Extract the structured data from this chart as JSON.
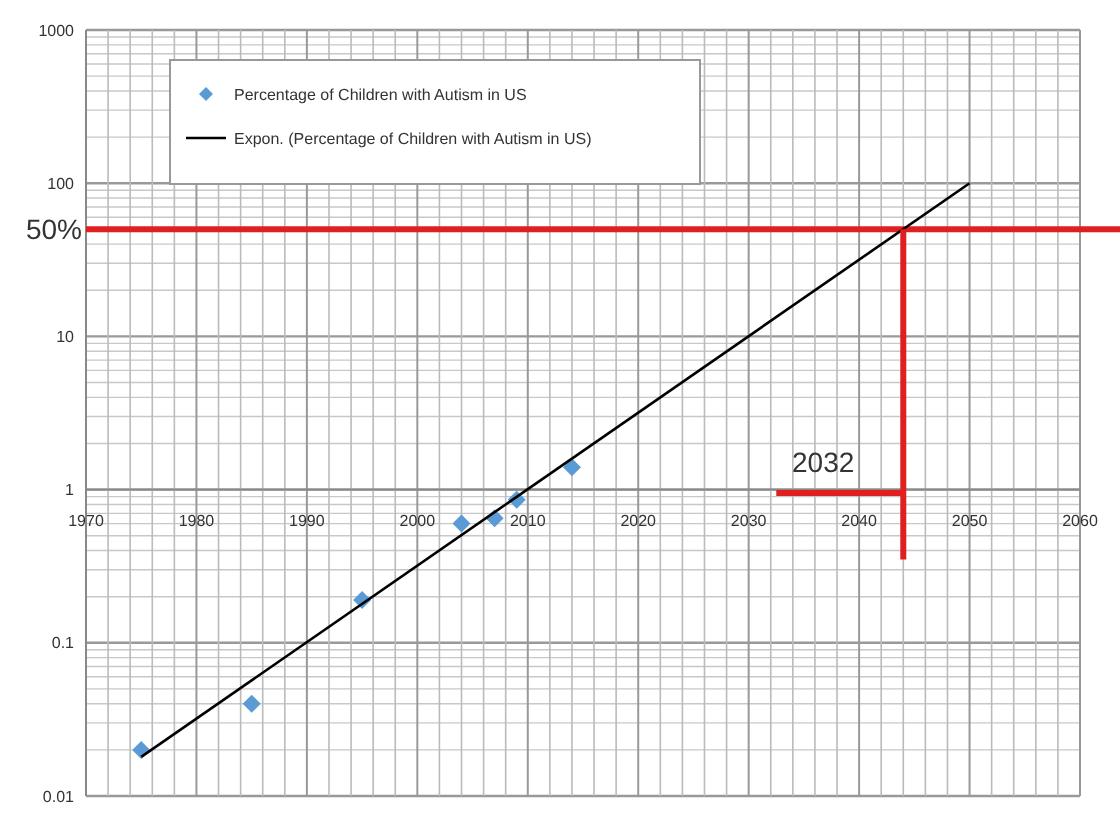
{
  "chart_data": {
    "type": "scatter",
    "log": "y",
    "grid": true,
    "legend": "top left",
    "marker": "diamond",
    "xlim": [
      1970,
      2060
    ],
    "xticks": [
      1970,
      1980,
      1990,
      2000,
      2010,
      2020,
      2030,
      2040,
      2050,
      2060
    ],
    "ylim": [
      0.01,
      1000
    ],
    "yticks": [
      0.01,
      0.1,
      1,
      10,
      100,
      1000
    ],
    "series": [
      {
        "name": "Percentage of Children with Autism in US",
        "color": "#5b9bd5",
        "x": [
          1975,
          1985,
          1995,
          2004,
          2007,
          2009,
          2014
        ],
        "values": [
          0.02,
          0.04,
          0.19,
          0.6,
          0.65,
          0.86,
          1.4
        ]
      },
      {
        "name": "Expon. (Percentage of Children with Autism in US)",
        "type": "line",
        "marker": "none",
        "color": "#000000",
        "x": [
          1975,
          2050
        ],
        "values": [
          0.018,
          100
        ]
      },
      {
        "type": "line",
        "marker": "none",
        "color": "#e02020",
        "x": [
          2044,
          2044
        ],
        "values": [
          50,
          0.35
        ]
      },
      {
        "type": "line",
        "marker": "none",
        "color": "#e02020",
        "x": [
          2032.5,
          2044
        ],
        "values": [
          0.95,
          0.95
        ]
      }
    ],
    "ref_lines": [
      {
        "axis": "y",
        "value": 50,
        "label": "50%",
        "color": "#e02020"
      }
    ],
    "annotations": [
      "2032"
    ]
  }
}
